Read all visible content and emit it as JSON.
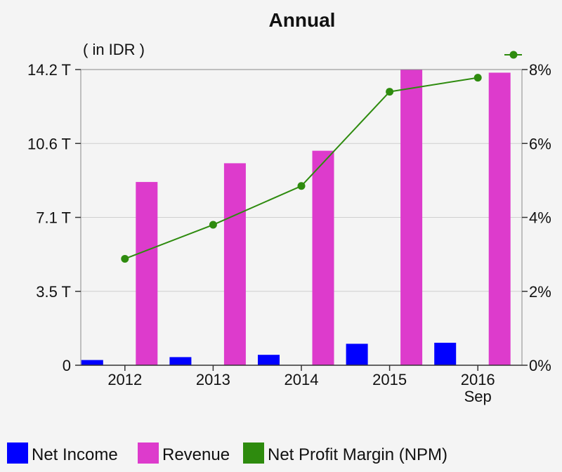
{
  "chart_data": {
    "type": "bar",
    "title": "Annual",
    "unit_label": "( in IDR )",
    "categories": [
      [
        "2012"
      ],
      [
        "2013"
      ],
      [
        "2014"
      ],
      [
        "2015"
      ],
      [
        "2016",
        "Sep"
      ]
    ],
    "series": [
      {
        "name": "Net Income",
        "type": "bar",
        "axis": "left",
        "color": "#0000ff",
        "values": [
          0.25,
          0.39,
          0.5,
          1.03,
          1.08
        ]
      },
      {
        "name": "Revenue",
        "type": "bar",
        "axis": "left",
        "color": "#dd3bcc",
        "values": [
          8.8,
          9.7,
          10.3,
          14.2,
          14.05
        ]
      },
      {
        "name": "Net Profit Margin (NPM)",
        "type": "line",
        "axis": "right",
        "color": "#2e8b0e",
        "values": [
          2.88,
          3.8,
          4.85,
          7.4,
          7.78
        ]
      }
    ],
    "y_left": {
      "ylim": [
        0,
        14.2
      ],
      "ticks": [
        0,
        3.55,
        7.1,
        10.65,
        14.2
      ],
      "tick_labels": [
        "0",
        "3.5 T",
        "7.1 T",
        "10.6 T",
        "14.2 T"
      ]
    },
    "y_right": {
      "ylim": [
        0,
        8
      ],
      "ticks": [
        0,
        2,
        4,
        6,
        8
      ],
      "tick_labels": [
        "0%",
        "2%",
        "4%",
        "6%",
        "8%"
      ]
    },
    "grid": true,
    "legend_position": "bottom-left"
  }
}
